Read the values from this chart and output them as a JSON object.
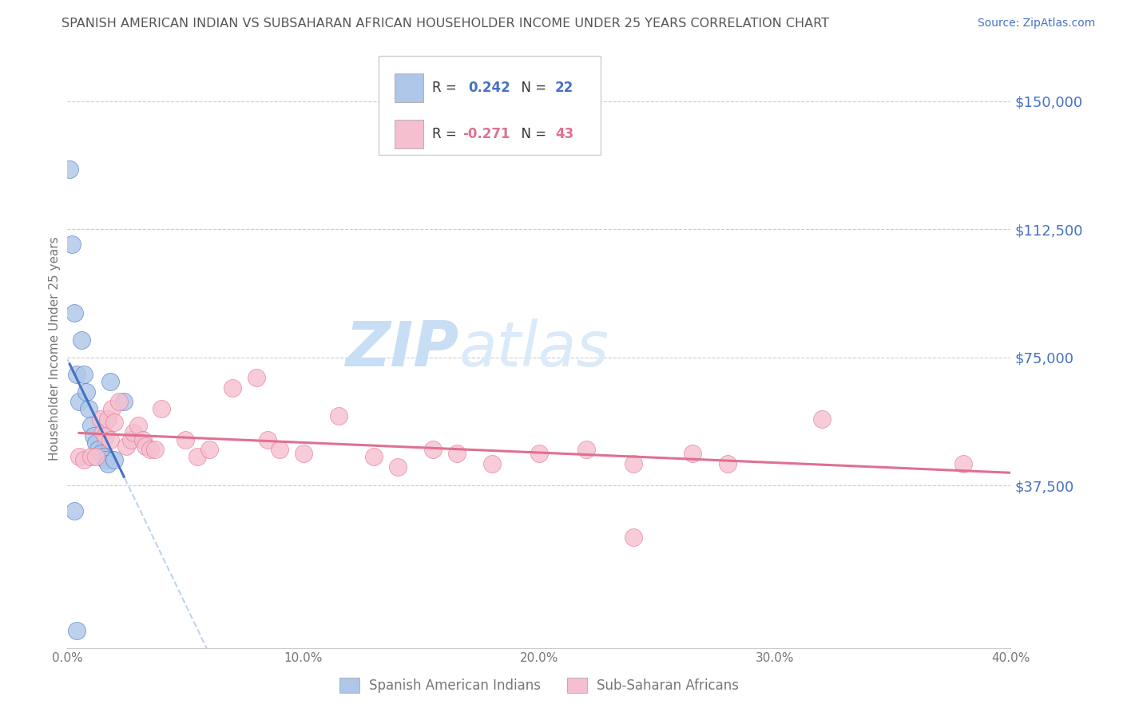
{
  "title": "SPANISH AMERICAN INDIAN VS SUBSAHARAN AFRICAN HOUSEHOLDER INCOME UNDER 25 YEARS CORRELATION CHART",
  "source": "Source: ZipAtlas.com",
  "xlabel_ticks": [
    "0.0%",
    "10.0%",
    "20.0%",
    "30.0%",
    "40.0%"
  ],
  "xlabel_tick_vals": [
    0.0,
    0.1,
    0.2,
    0.3,
    0.4
  ],
  "ylabel": "Householder Income Under 25 years",
  "ylabel_ticks": [
    "$37,500",
    "$75,000",
    "$112,500",
    "$150,000"
  ],
  "ylabel_tick_vals": [
    37500,
    75000,
    112500,
    150000
  ],
  "xmin": 0.0,
  "xmax": 0.4,
  "ymin": -10000,
  "ymax": 165000,
  "blue_R": 0.242,
  "blue_N": 22,
  "pink_R": -0.271,
  "pink_N": 43,
  "blue_x": [
    0.001,
    0.002,
    0.003,
    0.004,
    0.005,
    0.006,
    0.007,
    0.008,
    0.009,
    0.01,
    0.011,
    0.012,
    0.013,
    0.014,
    0.015,
    0.016,
    0.017,
    0.018,
    0.02,
    0.024,
    0.003,
    0.004
  ],
  "blue_y": [
    130000,
    108000,
    88000,
    70000,
    62000,
    80000,
    70000,
    65000,
    60000,
    55000,
    52000,
    50000,
    48000,
    47000,
    46000,
    45000,
    44000,
    68000,
    45000,
    62000,
    30000,
    -5000
  ],
  "pink_x": [
    0.005,
    0.007,
    0.01,
    0.012,
    0.014,
    0.015,
    0.016,
    0.017,
    0.018,
    0.019,
    0.02,
    0.022,
    0.025,
    0.027,
    0.028,
    0.03,
    0.032,
    0.033,
    0.035,
    0.037,
    0.04,
    0.05,
    0.055,
    0.06,
    0.07,
    0.08,
    0.085,
    0.09,
    0.1,
    0.115,
    0.13,
    0.14,
    0.155,
    0.165,
    0.18,
    0.2,
    0.22,
    0.24,
    0.265,
    0.28,
    0.32,
    0.24,
    0.38
  ],
  "pink_y": [
    46000,
    45000,
    46000,
    46000,
    57000,
    53000,
    52000,
    57000,
    51000,
    60000,
    56000,
    62000,
    49000,
    51000,
    53000,
    55000,
    51000,
    49000,
    48000,
    48000,
    60000,
    51000,
    46000,
    48000,
    66000,
    69000,
    51000,
    48000,
    47000,
    58000,
    46000,
    43000,
    48000,
    47000,
    44000,
    47000,
    48000,
    22500,
    47000,
    44000,
    57000,
    44000,
    44000
  ],
  "blue_color": "#aec6e8",
  "pink_color": "#f5bfcf",
  "blue_line_color": "#4472c4",
  "pink_line_color": "#e07090",
  "blue_dashed_color": "#b8d0ea",
  "watermark_text_color": "#daeaf8",
  "background_color": "#ffffff",
  "grid_color": "#cccccc",
  "title_color": "#555555",
  "source_color": "#4472c4",
  "legend_text_color": "#333333",
  "axis_color": "#4472c4"
}
